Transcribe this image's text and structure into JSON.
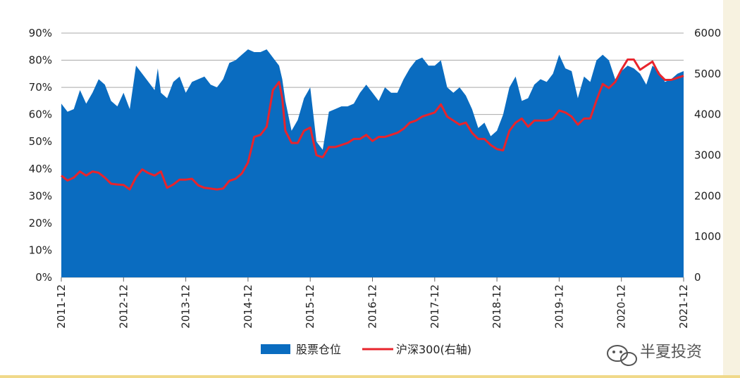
{
  "chart_data": {
    "type": "area",
    "x_tick_labels": [
      "2011-12",
      "2012-12",
      "2013-12",
      "2014-12",
      "2015-12",
      "2016-12",
      "2017-12",
      "2018-12",
      "2019-12",
      "2020-12",
      "2021-12"
    ],
    "left_axis": {
      "min": 0,
      "max": 90,
      "ticks": [
        "0%",
        "10%",
        "20%",
        "30%",
        "40%",
        "50%",
        "60%",
        "70%",
        "80%",
        "90%"
      ]
    },
    "right_axis": {
      "min": 0,
      "max": 6000,
      "ticks": [
        "0",
        "1000",
        "2000",
        "3000",
        "4000",
        "5000",
        "6000"
      ]
    },
    "grid": "horizontal",
    "legend_position": "bottom",
    "series": [
      {
        "name": "股票仓位",
        "kind": "area",
        "axis": "left",
        "color": "#0a6cc0",
        "points": [
          [
            0,
            64
          ],
          [
            0.1,
            61
          ],
          [
            0.2,
            62
          ],
          [
            0.3,
            69
          ],
          [
            0.4,
            64
          ],
          [
            0.5,
            68
          ],
          [
            0.6,
            73
          ],
          [
            0.7,
            71
          ],
          [
            0.8,
            65
          ],
          [
            0.9,
            63
          ],
          [
            1.0,
            68
          ],
          [
            1.1,
            62
          ],
          [
            1.2,
            78
          ],
          [
            1.3,
            75
          ],
          [
            1.4,
            72
          ],
          [
            1.5,
            69
          ],
          [
            1.55,
            77
          ],
          [
            1.6,
            68
          ],
          [
            1.7,
            66
          ],
          [
            1.8,
            72
          ],
          [
            1.9,
            74
          ],
          [
            2.0,
            68
          ],
          [
            2.1,
            72
          ],
          [
            2.2,
            73
          ],
          [
            2.3,
            74
          ],
          [
            2.4,
            71
          ],
          [
            2.5,
            70
          ],
          [
            2.6,
            73
          ],
          [
            2.7,
            79
          ],
          [
            2.8,
            80
          ],
          [
            2.9,
            82
          ],
          [
            3.0,
            84
          ],
          [
            3.1,
            83
          ],
          [
            3.2,
            83
          ],
          [
            3.3,
            84
          ],
          [
            3.4,
            81
          ],
          [
            3.5,
            78
          ],
          [
            3.55,
            73
          ],
          [
            3.6,
            65
          ],
          [
            3.7,
            54
          ],
          [
            3.8,
            58
          ],
          [
            3.9,
            66
          ],
          [
            4.0,
            70
          ],
          [
            4.1,
            50
          ],
          [
            4.2,
            47
          ],
          [
            4.3,
            61
          ],
          [
            4.4,
            62
          ],
          [
            4.5,
            63
          ],
          [
            4.6,
            63
          ],
          [
            4.7,
            64
          ],
          [
            4.8,
            68
          ],
          [
            4.9,
            71
          ],
          [
            5.0,
            68
          ],
          [
            5.1,
            65
          ],
          [
            5.2,
            70
          ],
          [
            5.3,
            68
          ],
          [
            5.4,
            68
          ],
          [
            5.5,
            73
          ],
          [
            5.6,
            77
          ],
          [
            5.7,
            80
          ],
          [
            5.8,
            81
          ],
          [
            5.9,
            78
          ],
          [
            6.0,
            78
          ],
          [
            6.1,
            80
          ],
          [
            6.2,
            70
          ],
          [
            6.3,
            68
          ],
          [
            6.4,
            70
          ],
          [
            6.5,
            67
          ],
          [
            6.6,
            62
          ],
          [
            6.7,
            55
          ],
          [
            6.8,
            57
          ],
          [
            6.9,
            52
          ],
          [
            7.0,
            54
          ],
          [
            7.1,
            60
          ],
          [
            7.2,
            70
          ],
          [
            7.3,
            74
          ],
          [
            7.4,
            65
          ],
          [
            7.5,
            66
          ],
          [
            7.6,
            71
          ],
          [
            7.7,
            73
          ],
          [
            7.8,
            72
          ],
          [
            7.9,
            75
          ],
          [
            8.0,
            82
          ],
          [
            8.1,
            77
          ],
          [
            8.2,
            76
          ],
          [
            8.3,
            66
          ],
          [
            8.4,
            74
          ],
          [
            8.5,
            72
          ],
          [
            8.6,
            80
          ],
          [
            8.7,
            82
          ],
          [
            8.8,
            80
          ],
          [
            8.9,
            73
          ],
          [
            9.0,
            76
          ],
          [
            9.1,
            78
          ],
          [
            9.2,
            77
          ],
          [
            9.3,
            75
          ],
          [
            9.4,
            71
          ],
          [
            9.5,
            78
          ],
          [
            9.6,
            76
          ],
          [
            9.7,
            72
          ],
          [
            9.8,
            73
          ],
          [
            9.9,
            75
          ],
          [
            10.0,
            76
          ]
        ]
      },
      {
        "name": "沪深300(右轴)",
        "kind": "line",
        "axis": "right",
        "color": "#e8242c",
        "points": [
          [
            0,
            2500
          ],
          [
            0.1,
            2380
          ],
          [
            0.2,
            2450
          ],
          [
            0.3,
            2600
          ],
          [
            0.4,
            2500
          ],
          [
            0.5,
            2600
          ],
          [
            0.6,
            2570
          ],
          [
            0.7,
            2450
          ],
          [
            0.8,
            2300
          ],
          [
            0.9,
            2280
          ],
          [
            1.0,
            2270
          ],
          [
            1.1,
            2160
          ],
          [
            1.2,
            2460
          ],
          [
            1.3,
            2650
          ],
          [
            1.4,
            2560
          ],
          [
            1.5,
            2500
          ],
          [
            1.6,
            2600
          ],
          [
            1.7,
            2200
          ],
          [
            1.8,
            2280
          ],
          [
            1.9,
            2400
          ],
          [
            2.0,
            2400
          ],
          [
            2.1,
            2420
          ],
          [
            2.2,
            2260
          ],
          [
            2.3,
            2200
          ],
          [
            2.4,
            2180
          ],
          [
            2.5,
            2160
          ],
          [
            2.6,
            2180
          ],
          [
            2.7,
            2370
          ],
          [
            2.8,
            2420
          ],
          [
            2.9,
            2550
          ],
          [
            3.0,
            2820
          ],
          [
            3.1,
            3450
          ],
          [
            3.2,
            3500
          ],
          [
            3.3,
            3700
          ],
          [
            3.4,
            4600
          ],
          [
            3.5,
            4800
          ],
          [
            3.55,
            4400
          ],
          [
            3.6,
            3600
          ],
          [
            3.7,
            3300
          ],
          [
            3.8,
            3300
          ],
          [
            3.9,
            3600
          ],
          [
            4.0,
            3680
          ],
          [
            4.1,
            3000
          ],
          [
            4.2,
            2950
          ],
          [
            4.3,
            3200
          ],
          [
            4.4,
            3200
          ],
          [
            4.5,
            3250
          ],
          [
            4.6,
            3300
          ],
          [
            4.7,
            3400
          ],
          [
            4.8,
            3400
          ],
          [
            4.9,
            3500
          ],
          [
            5.0,
            3350
          ],
          [
            5.1,
            3450
          ],
          [
            5.2,
            3450
          ],
          [
            5.3,
            3500
          ],
          [
            5.4,
            3550
          ],
          [
            5.5,
            3650
          ],
          [
            5.6,
            3800
          ],
          [
            5.7,
            3850
          ],
          [
            5.8,
            3950
          ],
          [
            5.9,
            4000
          ],
          [
            6.0,
            4050
          ],
          [
            6.1,
            4250
          ],
          [
            6.2,
            3950
          ],
          [
            6.3,
            3850
          ],
          [
            6.4,
            3750
          ],
          [
            6.5,
            3800
          ],
          [
            6.6,
            3550
          ],
          [
            6.7,
            3400
          ],
          [
            6.8,
            3400
          ],
          [
            6.9,
            3250
          ],
          [
            7.0,
            3150
          ],
          [
            7.1,
            3120
          ],
          [
            7.2,
            3600
          ],
          [
            7.3,
            3800
          ],
          [
            7.4,
            3900
          ],
          [
            7.5,
            3700
          ],
          [
            7.6,
            3850
          ],
          [
            7.7,
            3850
          ],
          [
            7.8,
            3850
          ],
          [
            7.9,
            3900
          ],
          [
            8.0,
            4100
          ],
          [
            8.1,
            4050
          ],
          [
            8.2,
            3950
          ],
          [
            8.3,
            3750
          ],
          [
            8.4,
            3900
          ],
          [
            8.5,
            3900
          ],
          [
            8.6,
            4350
          ],
          [
            8.7,
            4750
          ],
          [
            8.8,
            4650
          ],
          [
            8.9,
            4800
          ],
          [
            9.0,
            5100
          ],
          [
            9.1,
            5350
          ],
          [
            9.2,
            5350
          ],
          [
            9.3,
            5100
          ],
          [
            9.4,
            5200
          ],
          [
            9.5,
            5300
          ],
          [
            9.6,
            5000
          ],
          [
            9.7,
            4850
          ],
          [
            9.8,
            4850
          ],
          [
            9.9,
            4900
          ],
          [
            10.0,
            4950
          ]
        ]
      }
    ]
  },
  "watermark": {
    "text": "半夏投资",
    "icon": "wechat-icon"
  }
}
